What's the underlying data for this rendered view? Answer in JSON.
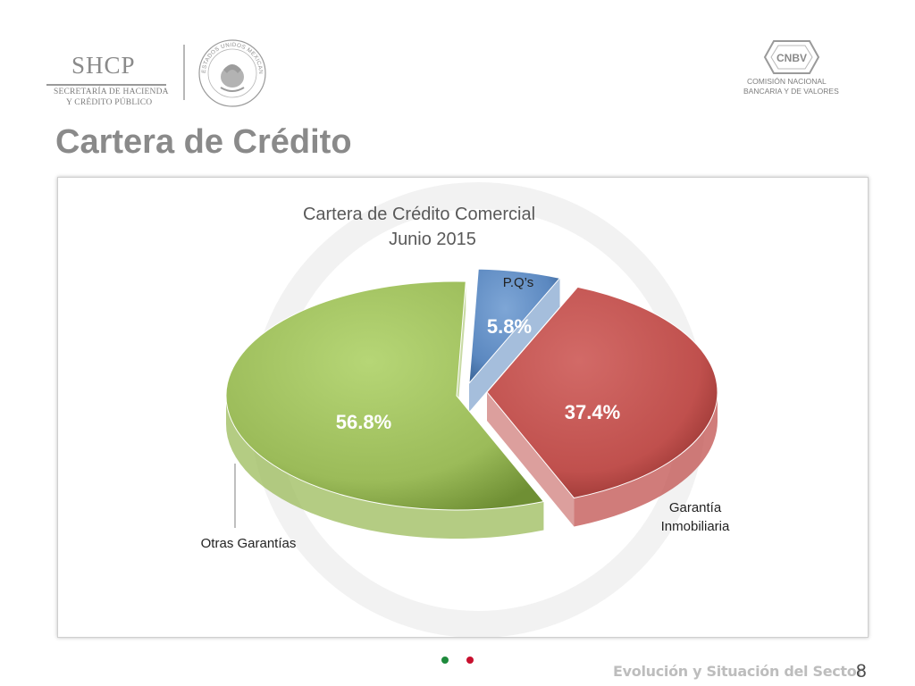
{
  "header": {
    "shcp_logo": {
      "name": "SHCP",
      "line1": "SECRETARÍA DE HACIENDA",
      "line2": "Y CRÉDITO PÚBLICO",
      "icon": "shcp-logo-icon"
    },
    "seal": {
      "text": "ESTADOS UNIDOS MEXICANOS",
      "icon": "national-seal-icon"
    },
    "cnbv_logo": {
      "name": "CNBV",
      "line1": "COMISIÓN NACIONAL",
      "line2": "BANCARIA Y DE VALORES",
      "icon": "cnbv-logo-icon"
    }
  },
  "page_title": "Cartera de Crédito",
  "chart_data": {
    "type": "pie",
    "title": "Cartera de Crédito Comercial",
    "subtitle": "Junio 2015",
    "slices": [
      {
        "name": "P.Q’s",
        "value": 5.8,
        "label": "5.8%",
        "color": "#5b88c0"
      },
      {
        "name": "Garantía Inmobiliaria",
        "label_lines": [
          "Garantía",
          "Inmobiliaria"
        ],
        "value": 37.4,
        "label": "37.4%",
        "color": "#c0504d"
      },
      {
        "name": "Otras Garantías",
        "value": 56.8,
        "label": "56.8%",
        "color": "#9bbb59"
      }
    ],
    "exploded": true,
    "three_d": true
  },
  "footer": {
    "flag_colors": [
      "#1e8a3c",
      "#c8102e"
    ],
    "text": "Evolución y Situación del Sector",
    "page_number": "8"
  }
}
